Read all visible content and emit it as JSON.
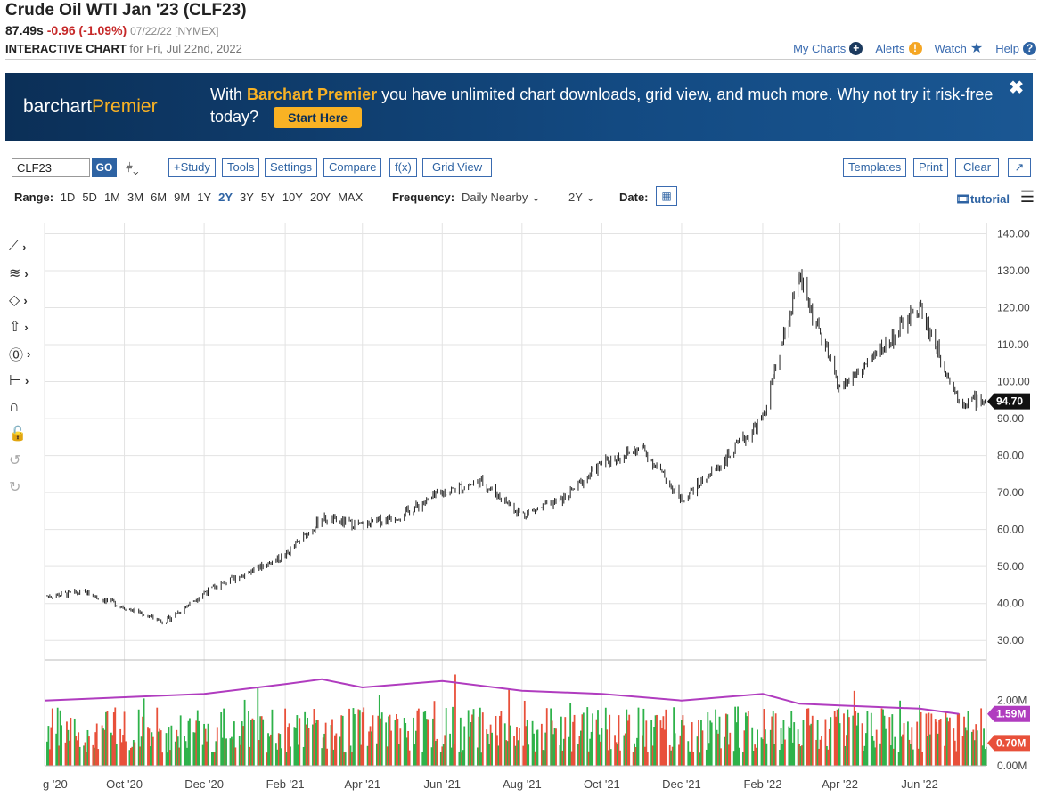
{
  "header": {
    "title": "Crude Oil WTI Jan '23 (CLF23)",
    "price": "87.49s",
    "change": "-0.96 (-1.09%)",
    "price_date": "07/22/22 [NYMEX]",
    "interactive_label": "INTERACTIVE CHART",
    "interactive_for": "for Fri, Jul 22nd, 2022"
  },
  "toplinks": {
    "my_charts": "My Charts",
    "alerts": "Alerts",
    "watch": "Watch",
    "help": "Help"
  },
  "banner": {
    "brand_a": "barchart",
    "brand_b": "Premier",
    "msg_pre": "With",
    "msg_hl": "Barchart Premier",
    "msg_post": "you have unlimited chart downloads, grid view, and much more. Why not try it risk-free today?",
    "cta": "Start Here",
    "close": "✖"
  },
  "toolbar": {
    "symbol": "CLF23",
    "go": "GO",
    "study": "+Study",
    "tools": "Tools",
    "settings": "Settings",
    "compare": "Compare",
    "fx": "f(x)",
    "grid_view": "Grid View",
    "templates": "Templates",
    "print": "Print",
    "clear": "Clear",
    "expand": "↗"
  },
  "rangebar": {
    "range_label": "Range:",
    "ranges": [
      "1D",
      "5D",
      "1M",
      "3M",
      "6M",
      "9M",
      "1Y",
      "2Y",
      "3Y",
      "5Y",
      "10Y",
      "20Y",
      "MAX"
    ],
    "active_range": "2Y",
    "frequency_label": "Frequency:",
    "frequency_value": "Daily Nearby",
    "period_value": "2Y",
    "date_label": "Date:",
    "tutorial": "tutorial"
  },
  "side_tools": [
    "trendline-tool-icon",
    "fib-tool-icon",
    "shapes-tool-icon",
    "arrow-tool-icon",
    "annotation-tool-icon",
    "measure-tool-icon",
    "magnet-icon",
    "lock-icon",
    "undo-icon",
    "redo-icon"
  ],
  "chart_data": {
    "type": "line",
    "title": "",
    "price_axis": {
      "ticks": [
        "140.00",
        "130.00",
        "120.00",
        "110.00",
        "100.00",
        "90.00",
        "80.00",
        "70.00",
        "60.00",
        "50.00",
        "40.00",
        "30.00"
      ],
      "ylim": [
        25,
        143
      ],
      "last_price_label": "94.70"
    },
    "x_tick_labels": [
      "g '20",
      "Oct '20",
      "Dec '20",
      "Feb '21",
      "Apr '21",
      "Jun '21",
      "Aug '21",
      "Oct '21",
      "Dec '21",
      "Feb '22",
      "Apr '22",
      "Jun '22"
    ],
    "price_series": {
      "name": "CLF23",
      "x": [
        "2020-08-01",
        "2020-09-01",
        "2020-10-01",
        "2020-11-01",
        "2020-12-01",
        "2021-01-01",
        "2021-02-01",
        "2021-03-01",
        "2021-04-01",
        "2021-05-01",
        "2021-06-01",
        "2021-07-01",
        "2021-08-01",
        "2021-09-01",
        "2021-10-01",
        "2021-11-01",
        "2021-12-01",
        "2022-01-01",
        "2022-02-01",
        "2022-03-01",
        "2022-04-01",
        "2022-05-01",
        "2022-06-01",
        "2022-07-01"
      ],
      "close": [
        42,
        43,
        39,
        35,
        43,
        48,
        53,
        63,
        61,
        64,
        70,
        73,
        64,
        68,
        78,
        82,
        68,
        78,
        90,
        128,
        98,
        108,
        120,
        95
      ]
    },
    "volume_axis": {
      "ticks": [
        "2.00M",
        "0.00M"
      ],
      "avg_label": "1.59M",
      "last_label": "0.70M"
    },
    "volume_avg": {
      "x": [
        "2020-08-01",
        "2020-10-01",
        "2020-12-01",
        "2021-02-01",
        "2021-03-01",
        "2021-04-01",
        "2021-06-01",
        "2021-08-01",
        "2021-10-01",
        "2021-12-01",
        "2022-02-01",
        "2022-03-01",
        "2022-04-01",
        "2022-06-01",
        "2022-07-01"
      ],
      "values": [
        2.0,
        2.1,
        2.2,
        2.5,
        2.65,
        2.4,
        2.6,
        2.3,
        2.2,
        2.0,
        2.2,
        1.9,
        1.85,
        1.75,
        1.59
      ]
    },
    "colors": {
      "up_volume": "#2eb24a",
      "down_volume": "#e8503a",
      "avg_line": "#b03cbf",
      "price_bars": "#222222",
      "grid": "#e3e3e3"
    }
  }
}
